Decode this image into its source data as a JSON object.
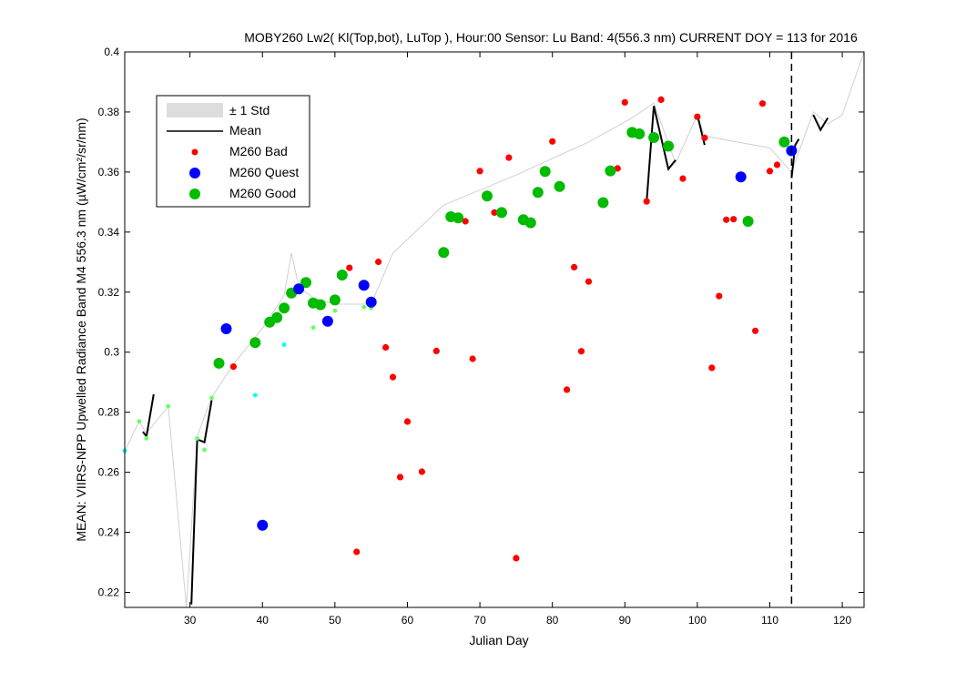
{
  "chart_data": {
    "type": "scatter",
    "title": "MOBY260   Lw2( Kl(Top,bot), LuTop ),   Hour:00 Sensor: Lu Band: 4(556.3 nm)   CURRENT DOY = 113 for 2016",
    "xlabel": "Julian Day",
    "ylabel": "MEAN: VIIRS-NPP Upwelled Radiance Band M4 556.3 nm (µW/cm²/sr/nm)",
    "xlim": [
      21,
      123
    ],
    "ylim": [
      0.215,
      0.4
    ],
    "x_ticks": [
      30,
      40,
      50,
      60,
      70,
      80,
      90,
      100,
      110,
      120
    ],
    "y_ticks": [
      0.22,
      0.24,
      0.26,
      0.28,
      0.3,
      0.32,
      0.34,
      0.36,
      0.38,
      0.4
    ],
    "x_tick_labels": [
      "30",
      "40",
      "50",
      "60",
      "70",
      "80",
      "90",
      "100",
      "110",
      "120"
    ],
    "y_tick_labels": [
      "0.22",
      "0.24",
      "0.26",
      "0.28",
      "0.3",
      "0.32",
      "0.34",
      "0.36",
      "0.38",
      "0.4"
    ],
    "current_doy": 113,
    "grid": false,
    "legend": {
      "position": "top-left",
      "items": [
        {
          "label": "± 1 Std",
          "kind": "band",
          "color": "#dddddd"
        },
        {
          "label": "Mean",
          "kind": "line",
          "color": "#000000"
        },
        {
          "label": "M260 Bad",
          "kind": "marker",
          "color": "#ff0000",
          "size": "small"
        },
        {
          "label": "M260 Quest",
          "kind": "marker",
          "color": "#0000ff",
          "size": "large"
        },
        {
          "label": "M260 Good",
          "kind": "marker",
          "color": "#00bb00",
          "size": "large"
        }
      ]
    },
    "std_upper": [
      [
        21,
        0.267
      ],
      [
        23,
        0.277
      ],
      [
        24,
        0.273
      ],
      [
        27,
        0.282
      ],
      [
        29.5,
        0.215
      ],
      [
        31,
        0.272
      ],
      [
        33,
        0.285
      ],
      [
        36,
        0.296
      ],
      [
        40,
        0.308
      ],
      [
        43,
        0.319
      ],
      [
        44,
        0.333
      ],
      [
        45,
        0.322
      ],
      [
        47,
        0.318
      ],
      [
        50,
        0.316
      ],
      [
        55,
        0.316
      ],
      [
        58,
        0.333
      ],
      [
        65,
        0.349
      ],
      [
        75,
        0.359
      ],
      [
        85,
        0.37
      ],
      [
        91,
        0.378
      ],
      [
        94,
        0.383
      ],
      [
        97,
        0.363
      ],
      [
        100,
        0.379
      ],
      [
        101,
        0.372
      ],
      [
        110,
        0.368
      ],
      [
        113,
        0.36
      ],
      [
        116,
        0.38
      ],
      [
        118,
        0.376
      ],
      [
        120,
        0.379
      ],
      [
        123,
        0.4
      ]
    ],
    "mean_segments": [
      [
        [
          23.5,
          0.2735
        ],
        [
          24,
          0.272
        ],
        [
          25,
          0.286
        ]
      ],
      [
        [
          30.2,
          0.216
        ],
        [
          31,
          0.271
        ],
        [
          32,
          0.27
        ],
        [
          33,
          0.284
        ]
      ],
      [
        [
          93,
          0.35
        ],
        [
          94,
          0.382
        ],
        [
          96,
          0.361
        ],
        [
          97,
          0.364
        ]
      ],
      [
        [
          100,
          0.379
        ],
        [
          101,
          0.369
        ]
      ],
      [
        [
          113,
          0.358
        ],
        [
          113.5,
          0.369
        ],
        [
          114,
          0.371
        ]
      ],
      [
        [
          116,
          0.379
        ],
        [
          117,
          0.374
        ],
        [
          118,
          0.378
        ]
      ]
    ],
    "series": [
      {
        "name": "M260 Bad",
        "color": "#ff0000",
        "marker_size": "small",
        "points": [
          [
            36,
            0.2952
          ],
          [
            52,
            0.3281
          ],
          [
            53,
            0.2335
          ],
          [
            56,
            0.3301
          ],
          [
            57,
            0.3016
          ],
          [
            58,
            0.2917
          ],
          [
            59,
            0.2584
          ],
          [
            60,
            0.2769
          ],
          [
            62,
            0.2602
          ],
          [
            64,
            0.3004
          ],
          [
            68,
            0.3436
          ],
          [
            69,
            0.2978
          ],
          [
            70,
            0.3603
          ],
          [
            72,
            0.3465
          ],
          [
            74,
            0.3648
          ],
          [
            75,
            0.2314
          ],
          [
            80,
            0.3702
          ],
          [
            82,
            0.2875
          ],
          [
            83,
            0.3283
          ],
          [
            84,
            0.3003
          ],
          [
            85,
            0.3235
          ],
          [
            89,
            0.3612
          ],
          [
            90,
            0.3832
          ],
          [
            93,
            0.3502
          ],
          [
            95,
            0.3841
          ],
          [
            98,
            0.3578
          ],
          [
            100,
            0.3784
          ],
          [
            101,
            0.3714
          ],
          [
            102,
            0.2948
          ],
          [
            103,
            0.3187
          ],
          [
            104,
            0.3441
          ],
          [
            105,
            0.3443
          ],
          [
            108,
            0.3071
          ],
          [
            109,
            0.3828
          ],
          [
            110,
            0.3603
          ],
          [
            111,
            0.3624
          ]
        ]
      },
      {
        "name": "M260 Quest",
        "color": "#0000ff",
        "marker_size": "large",
        "points": [
          [
            35,
            0.3078
          ],
          [
            40,
            0.2424
          ],
          [
            45,
            0.3211
          ],
          [
            49,
            0.3103
          ],
          [
            54,
            0.3223
          ],
          [
            55,
            0.3167
          ],
          [
            106,
            0.3584
          ],
          [
            113,
            0.3671
          ]
        ]
      },
      {
        "name": "M260 Good",
        "color": "#00bb00",
        "marker_size": "large",
        "points": [
          [
            34,
            0.2963
          ],
          [
            39,
            0.3032
          ],
          [
            41,
            0.31
          ],
          [
            42,
            0.3115
          ],
          [
            43,
            0.3147
          ],
          [
            44,
            0.3197
          ],
          [
            46,
            0.3232
          ],
          [
            47,
            0.3164
          ],
          [
            48,
            0.3158
          ],
          [
            50,
            0.3174
          ],
          [
            51,
            0.3257
          ],
          [
            65,
            0.3332
          ],
          [
            66,
            0.3451
          ],
          [
            67,
            0.3447
          ],
          [
            71,
            0.352
          ],
          [
            73,
            0.3465
          ],
          [
            76,
            0.3441
          ],
          [
            77,
            0.3431
          ],
          [
            78,
            0.3532
          ],
          [
            79,
            0.3602
          ],
          [
            81,
            0.3552
          ],
          [
            87,
            0.3498
          ],
          [
            88,
            0.3604
          ],
          [
            91,
            0.3732
          ],
          [
            92,
            0.3727
          ],
          [
            94,
            0.3715
          ],
          [
            96,
            0.3686
          ],
          [
            107,
            0.3436
          ],
          [
            112,
            0.37
          ]
        ]
      },
      {
        "name": "",
        "color": "#00ffff",
        "marker_size": "tiny",
        "points": [
          [
            21,
            0.2672
          ],
          [
            39,
            0.2857
          ],
          [
            43,
            0.3025
          ]
        ]
      },
      {
        "name": "",
        "color": "#66ff66",
        "marker_size": "tiny",
        "points": [
          [
            23,
            0.277
          ],
          [
            24,
            0.2713
          ],
          [
            27,
            0.282
          ],
          [
            31,
            0.2713
          ],
          [
            32,
            0.2675
          ],
          [
            33,
            0.2848
          ],
          [
            47,
            0.3082
          ],
          [
            50,
            0.3138
          ],
          [
            54,
            0.315
          ],
          [
            55,
            0.3147
          ]
        ]
      }
    ]
  }
}
